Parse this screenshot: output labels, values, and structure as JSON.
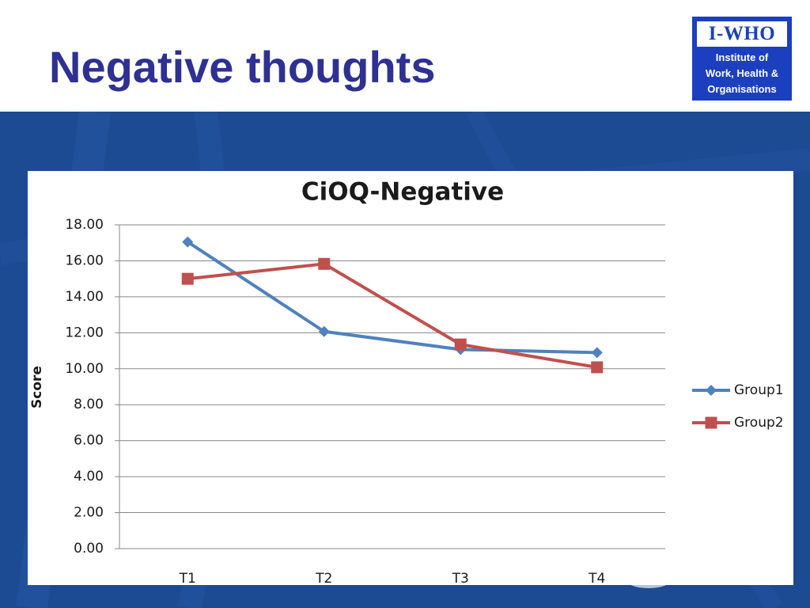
{
  "slide": {
    "title": "Negative thoughts"
  },
  "logo": {
    "name": "I-WHO",
    "line1": "Institute of",
    "line2": "Work, Health &",
    "line3": "Organisations"
  },
  "colors": {
    "title": "#2e3192",
    "band": "#1c4a93",
    "logo": "#1b3fbf",
    "group1": "#4f81bd",
    "group2": "#c0504d"
  },
  "chart_data": {
    "type": "line",
    "title": "CiOQ-Negative",
    "xlabel": "",
    "ylabel": "Score",
    "categories": [
      "T1",
      "T2",
      "T3",
      "T4"
    ],
    "ylim": [
      0,
      18
    ],
    "yticks": [
      "0.00",
      "2.00",
      "4.00",
      "6.00",
      "8.00",
      "10.00",
      "12.00",
      "14.00",
      "16.00",
      "18.00"
    ],
    "grid": true,
    "legend": "right",
    "series": [
      {
        "name": "Group1",
        "marker": "diamond",
        "color": "#4f81bd",
        "values": [
          17.05,
          12.07,
          11.07,
          10.9
        ]
      },
      {
        "name": "Group2",
        "marker": "square",
        "color": "#c0504d",
        "values": [
          15.0,
          15.83,
          11.35,
          10.08
        ]
      }
    ]
  }
}
